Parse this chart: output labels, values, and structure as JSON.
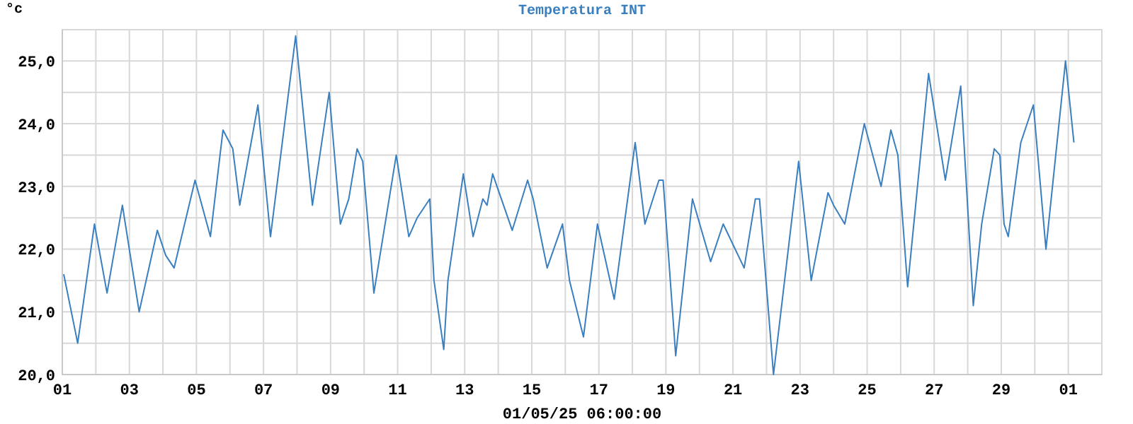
{
  "chart_data": {
    "type": "line",
    "title": "Temperatura INT",
    "xlabel": "01/05/25 06:00:00",
    "ylabel": "°c",
    "xlim": [
      "--04-01",
      "--05-02"
    ],
    "ylim": [
      20,
      25.5
    ],
    "xticks": [
      {
        "value": "--04-01",
        "label": "01"
      },
      {
        "value": "--04-02",
        "label": null
      },
      {
        "value": "--04-03",
        "label": "03"
      },
      {
        "value": "--04-04",
        "label": null
      },
      {
        "value": "--04-05",
        "label": "05"
      },
      {
        "value": "--04-06",
        "label": null
      },
      {
        "value": "--04-07",
        "label": "07"
      },
      {
        "value": "--04-08",
        "label": null
      },
      {
        "value": "--04-09",
        "label": "09"
      },
      {
        "value": "--04-10",
        "label": null
      },
      {
        "value": "--04-11",
        "label": "11"
      },
      {
        "value": "--04-12",
        "label": null
      },
      {
        "value": "--04-13",
        "label": "13"
      },
      {
        "value": "--04-14",
        "label": null
      },
      {
        "value": "--04-15",
        "label": "15"
      },
      {
        "value": "--04-16",
        "label": null
      },
      {
        "value": "--04-17",
        "label": "17"
      },
      {
        "value": "--04-18",
        "label": null
      },
      {
        "value": "--04-19",
        "label": "19"
      },
      {
        "value": "--04-20",
        "label": null
      },
      {
        "value": "--04-21",
        "label": "21"
      },
      {
        "value": "--04-22",
        "label": null
      },
      {
        "value": "--04-23",
        "label": "23"
      },
      {
        "value": "--04-24",
        "label": null
      },
      {
        "value": "--04-25",
        "label": "25"
      },
      {
        "value": "--04-26",
        "label": null
      },
      {
        "value": "--04-27",
        "label": "27"
      },
      {
        "value": "--04-28",
        "label": null
      },
      {
        "value": "--04-29",
        "label": "29"
      },
      {
        "value": "--04-30",
        "label": null
      },
      {
        "value": "--05-01",
        "label": "01"
      },
      {
        "value": "--05-02",
        "label": null
      }
    ],
    "yticks": [
      {
        "value": 20,
        "label": "20,0"
      },
      {
        "value": 20.5,
        "label": null
      },
      {
        "value": 21,
        "label": "21,0"
      },
      {
        "value": 21.5,
        "label": null
      },
      {
        "value": 22,
        "label": "22,0"
      },
      {
        "value": 22.5,
        "label": null
      },
      {
        "value": 23,
        "label": "23,0"
      },
      {
        "value": 23.5,
        "label": null
      },
      {
        "value": 24,
        "label": "24,0"
      },
      {
        "value": 24.5,
        "label": null
      },
      {
        "value": 25,
        "label": "25,0"
      },
      {
        "value": 25.5,
        "label": null
      }
    ],
    "grid": true,
    "marker": "none",
    "line_style": "solid",
    "x": [
      "--04-01T01:00",
      "--04-01T11:00",
      "--04-01T23:00",
      "--04-02T08:00",
      "--04-02T19:00",
      "--04-03T07:00",
      "--04-03T20:00",
      "--04-04T02:00",
      "--04-04T08:00",
      "--04-04T23:00",
      "--04-05T10:00",
      "--04-05T19:00",
      "--04-06T02:00",
      "--04-06T07:00",
      "--04-06T20:00",
      "--04-07T05:00",
      "--04-07T23:00",
      "--04-08T11:00",
      "--04-08T23:00",
      "--04-09T07:00",
      "--04-09T13:00",
      "--04-09T19:00",
      "--04-09T23:00",
      "--04-10T07:00",
      "--04-10T23:00",
      "--04-11T08:00",
      "--04-11T14:00",
      "--04-11T23:00",
      "--04-12T02:00",
      "--04-12T09:00",
      "--04-12T12:00",
      "--04-12T23:00",
      "--04-13T06:00",
      "--04-13T13:00",
      "--04-13T16:00",
      "--04-13T20:00",
      "--04-14T10:00",
      "--04-14T21:00",
      "--04-15T01:00",
      "--04-15T11:00",
      "--04-15T22:00",
      "--04-16T03:00",
      "--04-16T13:00",
      "--04-16T23:00",
      "--04-17T11:00",
      "--04-18T02:00",
      "--04-18T09:00",
      "--04-18T19:00",
      "--04-18T22:00",
      "--04-19T07:00",
      "--04-19T19:00",
      "--04-20T08:00",
      "--04-20T17:00",
      "--04-21T08:00",
      "--04-21T16:00",
      "--04-21T19:00",
      "--04-22T05:00",
      "--04-22T23:00",
      "--04-23T08:00",
      "--04-23T20:00",
      "--04-24T00:00",
      "--04-24T08:00",
      "--04-24T22:00",
      "--04-25T10:00",
      "--04-25T17:00",
      "--04-25T22:00",
      "--04-26T05:00",
      "--04-26T20:00",
      "--04-27T08:00",
      "--04-27T19:00",
      "--04-28T04:00",
      "--04-28T10:00",
      "--04-28T19:00",
      "--04-28T23:00",
      "--04-29T02:00",
      "--04-29T05:00",
      "--04-29T14:00",
      "--04-29T23:00",
      "--04-30T08:00",
      "--04-30T22:00",
      "--05-01T04:00"
    ],
    "series": [
      {
        "color": "#3a7fbf",
        "values": [
          21.6,
          20.5,
          22.4,
          21.3,
          22.7,
          21.0,
          22.3,
          21.9,
          21.7,
          23.1,
          22.2,
          23.9,
          23.6,
          22.7,
          24.3,
          22.2,
          25.4,
          22.7,
          24.5,
          22.4,
          22.8,
          23.6,
          23.4,
          21.3,
          23.5,
          22.2,
          22.5,
          22.8,
          21.5,
          20.4,
          21.5,
          23.2,
          22.2,
          22.8,
          22.7,
          23.2,
          22.3,
          23.1,
          22.8,
          21.7,
          22.4,
          21.5,
          20.6,
          22.4,
          21.2,
          23.7,
          22.4,
          23.1,
          23.1,
          20.3,
          22.8,
          21.8,
          22.4,
          21.7,
          22.8,
          22.8,
          20.0,
          23.4,
          21.5,
          22.9,
          22.7,
          22.4,
          24.0,
          23.0,
          23.9,
          23.5,
          21.4,
          24.8,
          23.1,
          24.6,
          21.1,
          22.4,
          23.6,
          23.5,
          22.4,
          22.2,
          23.7,
          24.3,
          22.0,
          25.0,
          23.7
        ]
      }
    ]
  }
}
